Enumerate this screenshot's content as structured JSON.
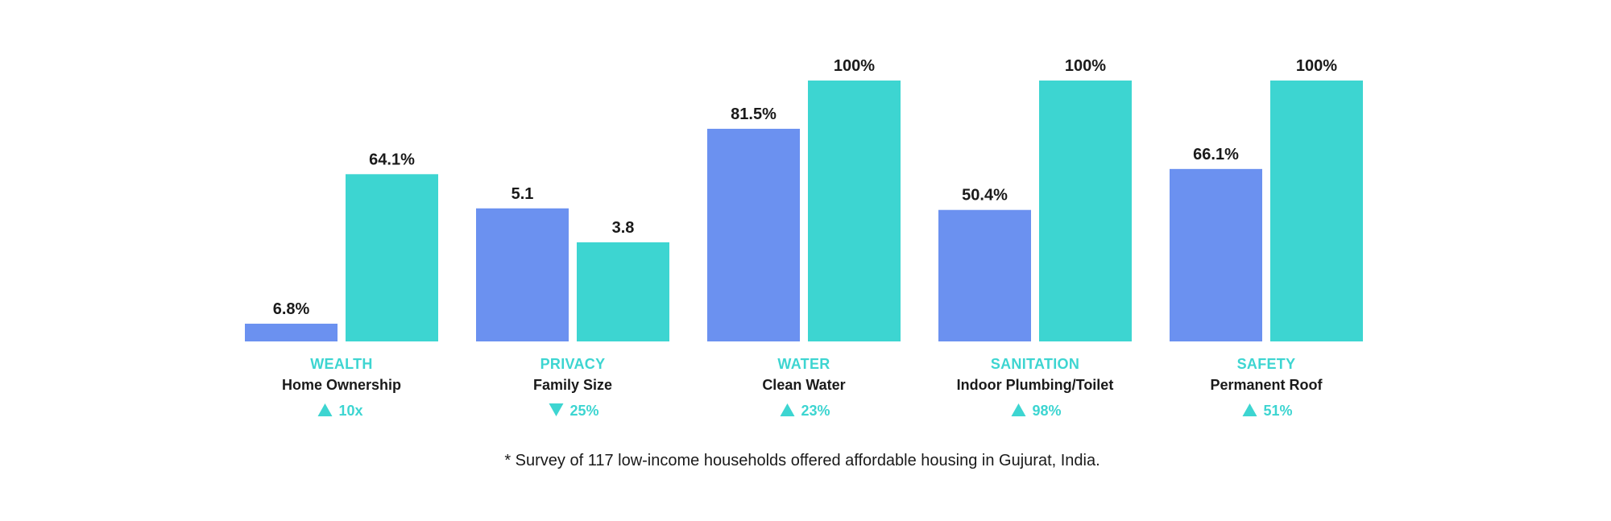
{
  "colors": {
    "before": "#6b91f0",
    "after": "#3dd5d1",
    "accent": "#3dd5d1",
    "text": "#1a1a1a"
  },
  "chart_data": {
    "type": "bar",
    "title": "",
    "xlabel": "",
    "ylabel": "",
    "grid": false,
    "categories": [
      {
        "key": "wealth",
        "title": "WEALTH",
        "subtitle": "Home Ownership",
        "direction": "up",
        "change": "10x",
        "before": {
          "value": 6.8,
          "label": "6.8%"
        },
        "after": {
          "value": 64.1,
          "label": "64.1%"
        },
        "scale_max": 100
      },
      {
        "key": "privacy",
        "title": "PRIVACY",
        "subtitle": "Family Size",
        "direction": "down",
        "change": "25%",
        "before": {
          "value": 5.1,
          "label": "5.1"
        },
        "after": {
          "value": 3.8,
          "label": "3.8"
        },
        "scale_max": 10
      },
      {
        "key": "water",
        "title": "WATER",
        "subtitle": "Clean Water",
        "direction": "up",
        "change": "23%",
        "before": {
          "value": 81.5,
          "label": "81.5%"
        },
        "after": {
          "value": 100,
          "label": "100%"
        },
        "scale_max": 100
      },
      {
        "key": "sanitation",
        "title": "SANITATION",
        "subtitle": "Indoor Plumbing/Toilet",
        "direction": "up",
        "change": "98%",
        "before": {
          "value": 50.4,
          "label": "50.4%"
        },
        "after": {
          "value": 100,
          "label": "100%"
        },
        "scale_max": 100
      },
      {
        "key": "safety",
        "title": "SAFETY",
        "subtitle": "Permanent Roof",
        "direction": "up",
        "change": "51%",
        "before": {
          "value": 66.1,
          "label": "66.1%"
        },
        "after": {
          "value": 100,
          "label": "100%"
        },
        "scale_max": 100
      }
    ],
    "footnote": "* Survey of 117 low-income households offered affordable housing in Gujurat, India."
  }
}
